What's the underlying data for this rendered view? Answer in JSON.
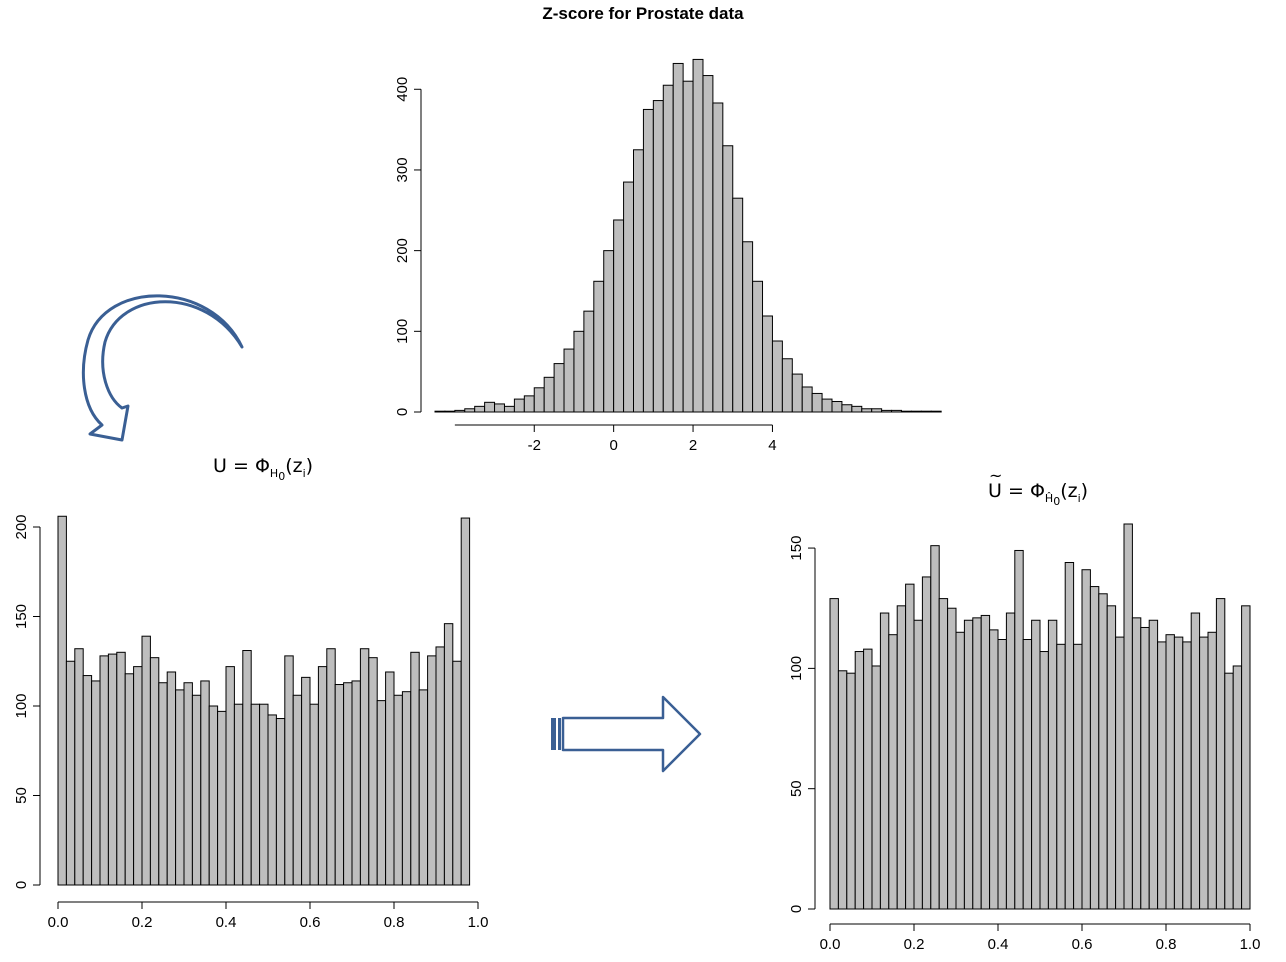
{
  "title": "Z-score for Prostate data",
  "formulas": {
    "u": {
      "lhs": "U",
      "eq": "=",
      "phi": "Φ",
      "sub": "H",
      "sub2": "0",
      "arg": "(z",
      "arg_sub": "i",
      "close": ")"
    },
    "u_tilde": {
      "lhs": "U",
      "eq": "=",
      "phi": "Φ",
      "sub": "Ĥ",
      "sub2": "0",
      "arg": "(z",
      "arg_sub": "i",
      "close": ")"
    }
  },
  "colors": {
    "bar_fill": "#bebebe",
    "bar_stroke": "#000000",
    "arrow": "#3a5f94"
  },
  "chart_data": [
    {
      "id": "zscore",
      "type": "bar",
      "title": "Z-score for Prostate data",
      "xlabel": "",
      "ylabel": "",
      "bin_start": -4.5,
      "bin_width": 0.25,
      "xlim": [
        -4.5,
        5.5
      ],
      "ylim": [
        0,
        440
      ],
      "xticks": [
        -2,
        0,
        2,
        4
      ],
      "xtick_labels": [
        "-2",
        "0",
        "2",
        "4"
      ],
      "xaxis_from": -4,
      "xaxis_to": 4,
      "yticks": [
        0,
        100,
        200,
        300,
        400
      ],
      "ytick_labels": [
        "0",
        "100",
        "200",
        "300",
        "400"
      ],
      "values": [
        1,
        1,
        2,
        4,
        7,
        12,
        10,
        7,
        16,
        20,
        30,
        43,
        60,
        78,
        100,
        125,
        162,
        200,
        238,
        285,
        325,
        375,
        386,
        405,
        432,
        410,
        437,
        417,
        383,
        330,
        265,
        211,
        162,
        119,
        88,
        66,
        47,
        31,
        23,
        16,
        13,
        9,
        7,
        4,
        4,
        2,
        2,
        1,
        1,
        1,
        1
      ]
    },
    {
      "id": "u",
      "type": "bar",
      "xlabel": "",
      "ylabel": "",
      "bin_start": 0,
      "bin_width": 0.02,
      "xlim": [
        0,
        1
      ],
      "ylim": [
        0,
        200
      ],
      "xticks": [
        0,
        0.2,
        0.4,
        0.6,
        0.8,
        1.0
      ],
      "xtick_labels": [
        "0.0",
        "0.2",
        "0.4",
        "0.6",
        "0.8",
        "1.0"
      ],
      "xaxis_from": 0,
      "xaxis_to": 1,
      "yticks": [
        0,
        50,
        100,
        150,
        200
      ],
      "ytick_labels": [
        "0",
        "50",
        "100",
        "150",
        "200"
      ],
      "values": [
        206,
        125,
        132,
        117,
        114,
        128,
        129,
        130,
        118,
        122,
        139,
        127,
        113,
        119,
        109,
        113,
        106,
        114,
        100,
        97,
        122,
        101,
        131,
        101,
        101,
        95,
        93,
        128,
        106,
        116,
        101,
        122,
        132,
        112,
        113,
        114,
        132,
        127,
        103,
        119,
        106,
        108,
        130,
        109,
        128,
        133,
        146,
        125,
        205
      ]
    },
    {
      "id": "u_tilde",
      "type": "bar",
      "xlabel": "",
      "ylabel": "",
      "bin_start": 0,
      "bin_width": 0.02,
      "xlim": [
        0,
        1
      ],
      "ylim": [
        0,
        160
      ],
      "xticks": [
        0,
        0.2,
        0.4,
        0.6,
        0.8,
        1.0
      ],
      "xtick_labels": [
        "0.0",
        "0.2",
        "0.4",
        "0.6",
        "0.8",
        "1.0"
      ],
      "xaxis_from": 0,
      "xaxis_to": 1,
      "yticks": [
        0,
        50,
        100,
        150
      ],
      "ytick_labels": [
        "0",
        "50",
        "100",
        "150"
      ],
      "values": [
        129,
        99,
        98,
        107,
        108,
        101,
        123,
        114,
        126,
        135,
        120,
        138,
        151,
        129,
        125,
        115,
        120,
        121,
        122,
        116,
        112,
        123,
        149,
        112,
        120,
        107,
        120,
        110,
        144,
        110,
        141,
        134,
        131,
        126,
        113,
        160,
        121,
        117,
        120,
        111,
        114,
        113,
        111,
        123,
        113,
        115,
        129,
        98,
        101,
        126
      ]
    }
  ]
}
